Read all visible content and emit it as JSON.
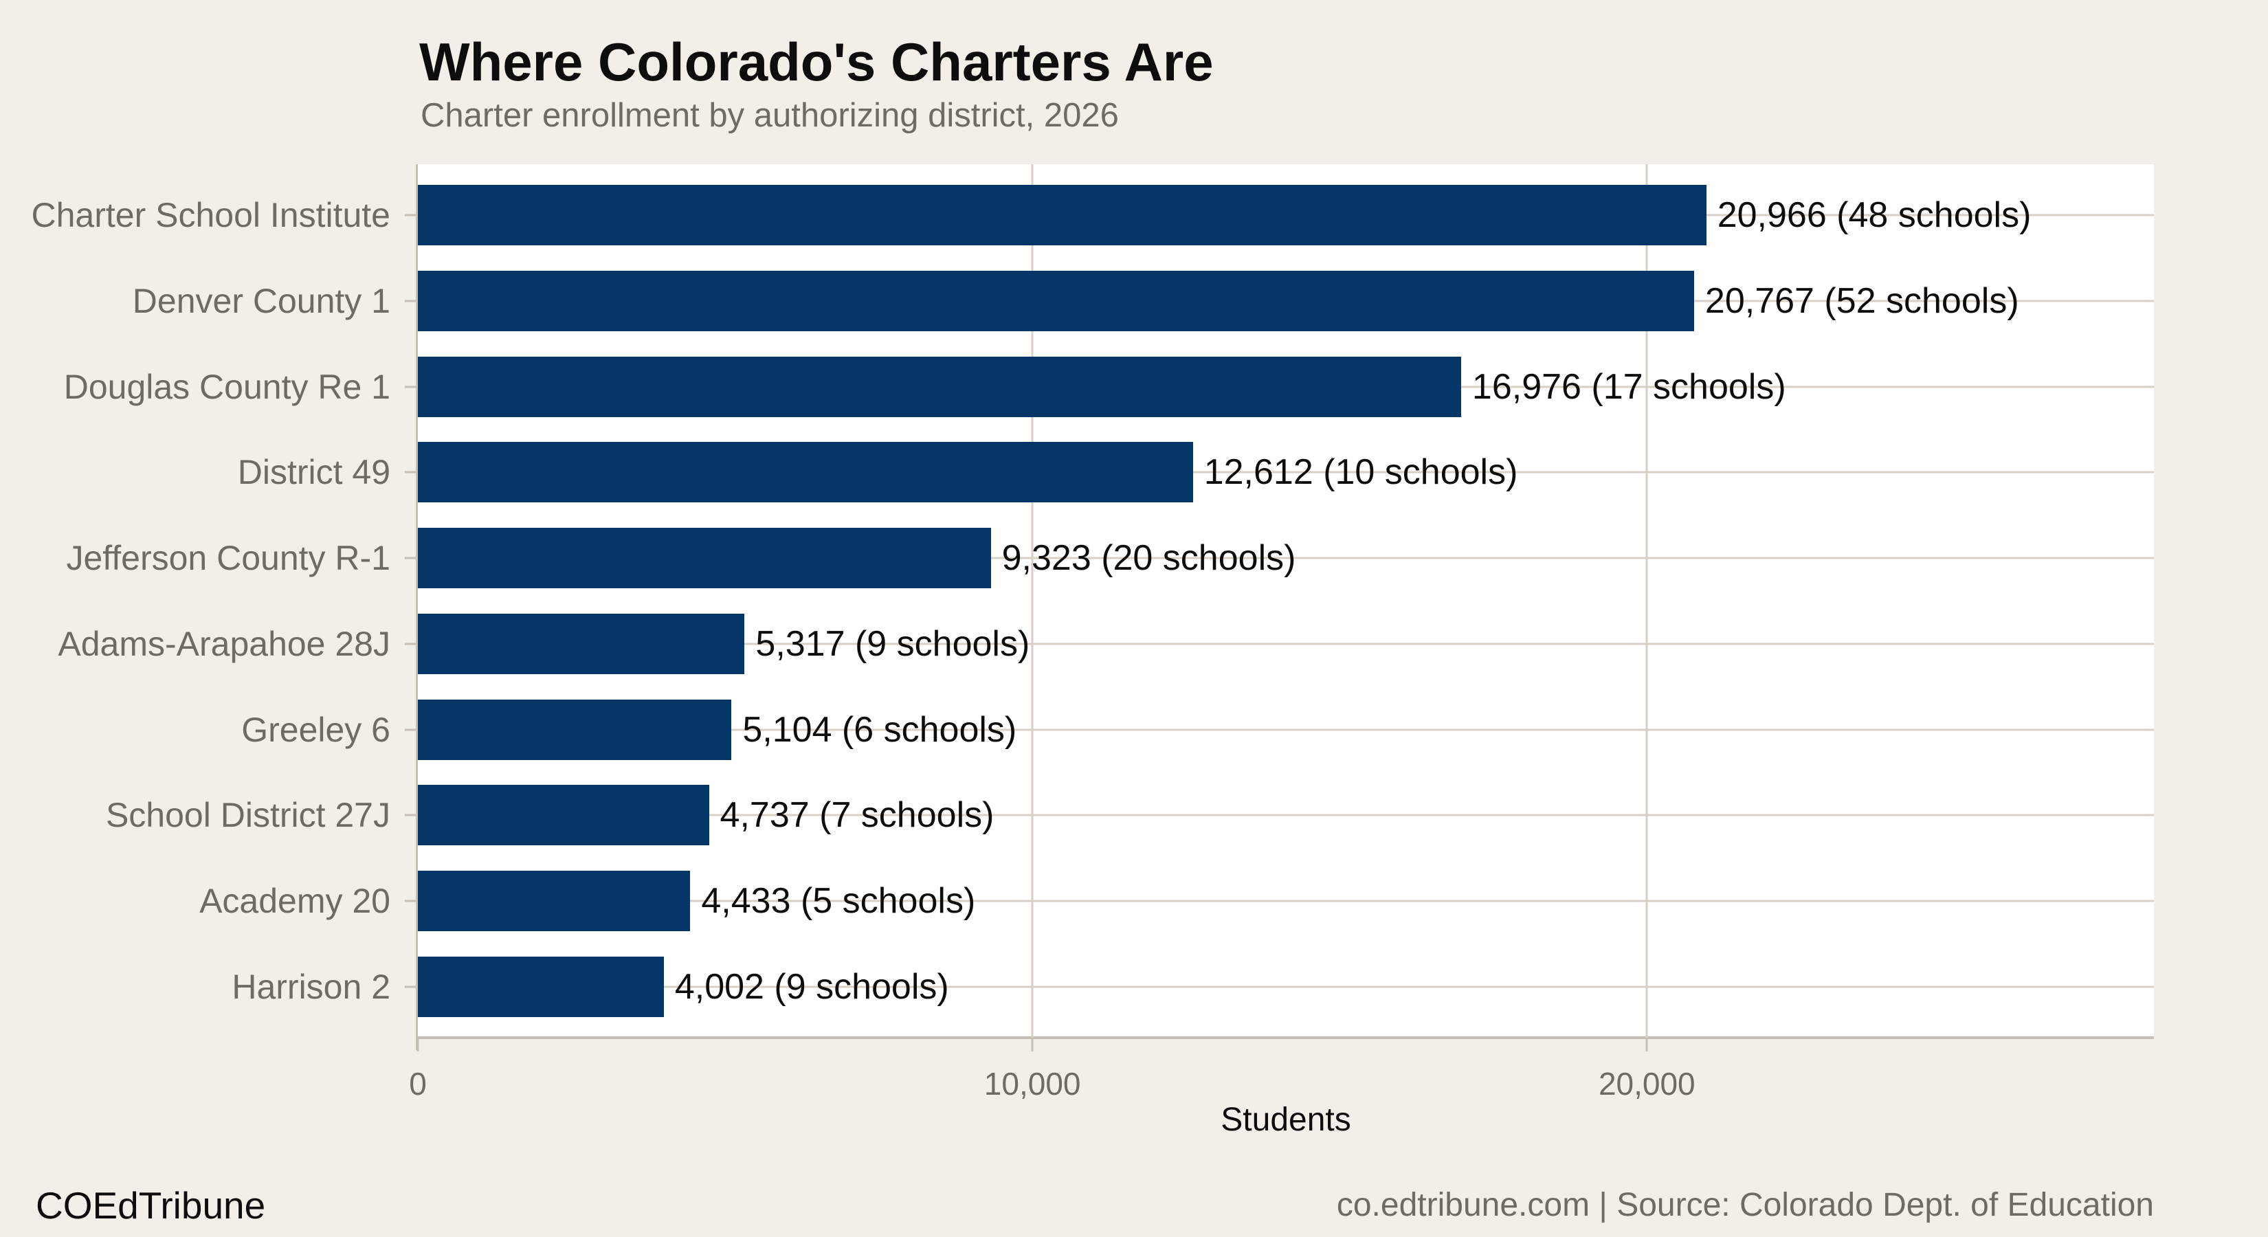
{
  "chart_data": {
    "type": "bar",
    "orientation": "horizontal",
    "title": "Where Colorado's Charters Are",
    "subtitle": "Charter enrollment by authorizing district, 2026",
    "xlabel": "Students",
    "xlim": [
      0,
      28250
    ],
    "x_ticks": [
      {
        "value": 0,
        "label": "0"
      },
      {
        "value": 10000,
        "label": "10,000"
      },
      {
        "value": 20000,
        "label": "20,000"
      }
    ],
    "grid": {
      "vertical_gridlines": true,
      "horizontal_row_lines": true
    },
    "legend_position": "none",
    "bar_color": "#043768",
    "categories": [
      "Charter School Institute",
      "Denver County 1",
      "Douglas County Re 1",
      "District 49",
      "Jefferson County R-1",
      "Adams-Arapahoe 28J",
      "Greeley 6",
      "School District 27J",
      "Academy 20",
      "Harrison 2"
    ],
    "series": [
      {
        "name": "Charter enrollment",
        "values": [
          20966,
          20767,
          16976,
          12612,
          9323,
          5317,
          5104,
          4737,
          4433,
          4002
        ]
      },
      {
        "name": "Schools",
        "values": [
          48,
          52,
          17,
          10,
          20,
          9,
          6,
          7,
          5,
          9
        ]
      }
    ],
    "bar_labels": [
      "20,966 (48 schools)",
      "20,767 (52 schools)",
      "16,976 (17 schools)",
      "12,612 (10 schools)",
      "9,323 (20 schools)",
      "5,317 (9 schools)",
      "5,104 (6 schools)",
      "4,737 (7 schools)",
      "4,433 (5 schools)",
      "4,002 (9 schools)"
    ]
  },
  "footer": {
    "brand": "COEdTribune",
    "attribution": "co.edtribune.com | Source: Colorado Dept. of Education"
  },
  "colors": {
    "background": "#f2efe9",
    "plot_background": "#ffffff",
    "bar": "#043768",
    "gridline": "#d7d0c6",
    "axis_line": "#c7bfb3",
    "text_primary": "#0d0d0d",
    "text_muted": "#6f6a63"
  }
}
